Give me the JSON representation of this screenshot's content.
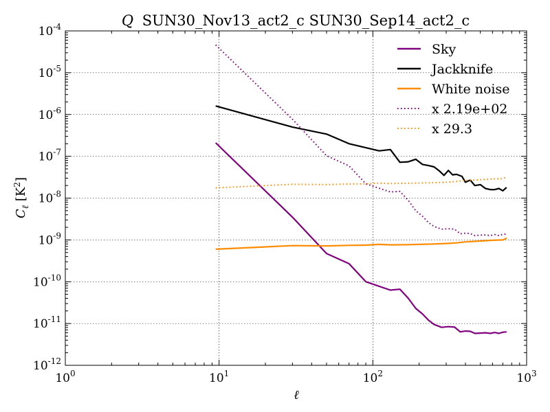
{
  "chart_data": {
    "type": "line",
    "title_prefix": "Q",
    "title_rest": "SUN30_Nov13_act2_c SUN30_Sep14_act2_c",
    "xlabel": "ℓ",
    "ylabel": "Cℓ [K²]",
    "x_scale": "log",
    "y_scale": "log",
    "xlim": [
      1,
      1000
    ],
    "ylim": [
      1e-12,
      0.0001
    ],
    "grid": true,
    "legend_position": "top-right",
    "x_ticks": [
      {
        "value": 1,
        "base": "10",
        "exp": "0"
      },
      {
        "value": 10,
        "base": "10",
        "exp": "1"
      },
      {
        "value": 100,
        "base": "10",
        "exp": "2"
      },
      {
        "value": 1000,
        "base": "10",
        "exp": "3"
      }
    ],
    "y_ticks": [
      {
        "value": 1e-12,
        "base": "10",
        "exp": "-12"
      },
      {
        "value": 1e-11,
        "base": "10",
        "exp": "-11"
      },
      {
        "value": 1e-10,
        "base": "10",
        "exp": "-10"
      },
      {
        "value": 1e-09,
        "base": "10",
        "exp": "-9"
      },
      {
        "value": 1e-08,
        "base": "10",
        "exp": "-8"
      },
      {
        "value": 1e-07,
        "base": "10",
        "exp": "-7"
      },
      {
        "value": 1e-06,
        "base": "10",
        "exp": "-6"
      },
      {
        "value": 1e-05,
        "base": "10",
        "exp": "-5"
      },
      {
        "value": 0.0001,
        "base": "10",
        "exp": "-4"
      }
    ],
    "series": [
      {
        "name": "Sky",
        "color": "#800080",
        "style": "solid",
        "x": [
          9.5,
          30,
          50,
          70,
          90,
          130,
          150,
          170,
          190,
          210,
          230,
          250,
          280,
          310,
          340,
          370,
          400,
          430,
          460,
          500,
          540,
          580,
          620,
          660,
          700,
          740
        ],
        "y": [
          2.1e-07,
          3.5e-09,
          4.7e-10,
          2.7e-10,
          1e-10,
          6.3e-11,
          6.6e-11,
          4e-11,
          2.3e-11,
          1.7e-11,
          1.2e-11,
          9.5e-12,
          8.1e-12,
          8.4e-12,
          8.2e-12,
          6.3e-12,
          6.6e-12,
          6.5e-12,
          5.8e-12,
          5.9e-12,
          6e-12,
          5.8e-12,
          6.1e-12,
          5.8e-12,
          6.2e-12,
          6.3e-12
        ]
      },
      {
        "name": "Jackknife",
        "color": "#000000",
        "style": "solid",
        "x": [
          9.5,
          30,
          50,
          70,
          110,
          130,
          150,
          170,
          190,
          210,
          230,
          250,
          270,
          290,
          310,
          330,
          350,
          380,
          400,
          430,
          460,
          500,
          540,
          580,
          620,
          660,
          700,
          740
        ],
        "y": [
          1.6e-06,
          5e-07,
          3.4e-07,
          2e-07,
          1.35e-07,
          1.45e-07,
          7.2e-08,
          7.4e-08,
          8.5e-08,
          6.4e-08,
          6e-08,
          5.6e-08,
          4.5e-08,
          3.5e-08,
          4.6e-08,
          3.6e-08,
          3.7e-08,
          3.3e-08,
          2.4e-08,
          2.7e-08,
          2e-08,
          2.1e-08,
          1.7e-08,
          1.6e-08,
          1.6e-08,
          1.7e-08,
          1.5e-08,
          1.8e-08
        ]
      },
      {
        "name": "White noise",
        "color": "#FF8C00",
        "style": "solid",
        "x": [
          9.5,
          30,
          50,
          70,
          90,
          110,
          130,
          170,
          200,
          250,
          300,
          350,
          400,
          500,
          600,
          700,
          740
        ],
        "y": [
          6e-10,
          7.3e-10,
          7.2e-10,
          7.4e-10,
          7.5e-10,
          7.8e-10,
          7.6e-10,
          7.7e-10,
          7.8e-10,
          8e-10,
          8.2e-10,
          8.5e-10,
          9e-10,
          9.4e-10,
          9.8e-10,
          1e-09,
          1.1e-09
        ]
      },
      {
        "name": "x 2.19e+02",
        "color": "#800080",
        "style": "dotted",
        "x": [
          9.5,
          30,
          50,
          70,
          90,
          130,
          150,
          170,
          190,
          210,
          230,
          250,
          280,
          310,
          340,
          370,
          400,
          430,
          460,
          500,
          540,
          580,
          620,
          660,
          700,
          740
        ],
        "y": [
          4.6e-05,
          7.7e-07,
          1.03e-07,
          5.9e-08,
          2.2e-08,
          1.4e-08,
          1.45e-08,
          8.8e-09,
          5e-09,
          3.7e-09,
          2.6e-09,
          2.1e-09,
          1.8e-09,
          1.85e-09,
          1.8e-09,
          1.4e-09,
          1.45e-09,
          1.42e-09,
          1.27e-09,
          1.3e-09,
          1.31e-09,
          1.27e-09,
          1.34e-09,
          1.27e-09,
          1.36e-09,
          1.38e-09
        ]
      },
      {
        "name": "x 29.3",
        "color": "#FF8C00",
        "style": "dotted",
        "x": [
          9.5,
          30,
          50,
          70,
          90,
          110,
          130,
          170,
          200,
          250,
          300,
          350,
          400,
          500,
          600,
          700,
          740
        ],
        "y": [
          1.76e-08,
          2.14e-08,
          2.11e-08,
          2.17e-08,
          2.2e-08,
          2.28e-08,
          2.23e-08,
          2.26e-08,
          2.29e-08,
          2.34e-08,
          2.4e-08,
          2.5e-08,
          2.64e-08,
          2.75e-08,
          2.87e-08,
          2.93e-08,
          3.2e-08
        ]
      }
    ]
  }
}
